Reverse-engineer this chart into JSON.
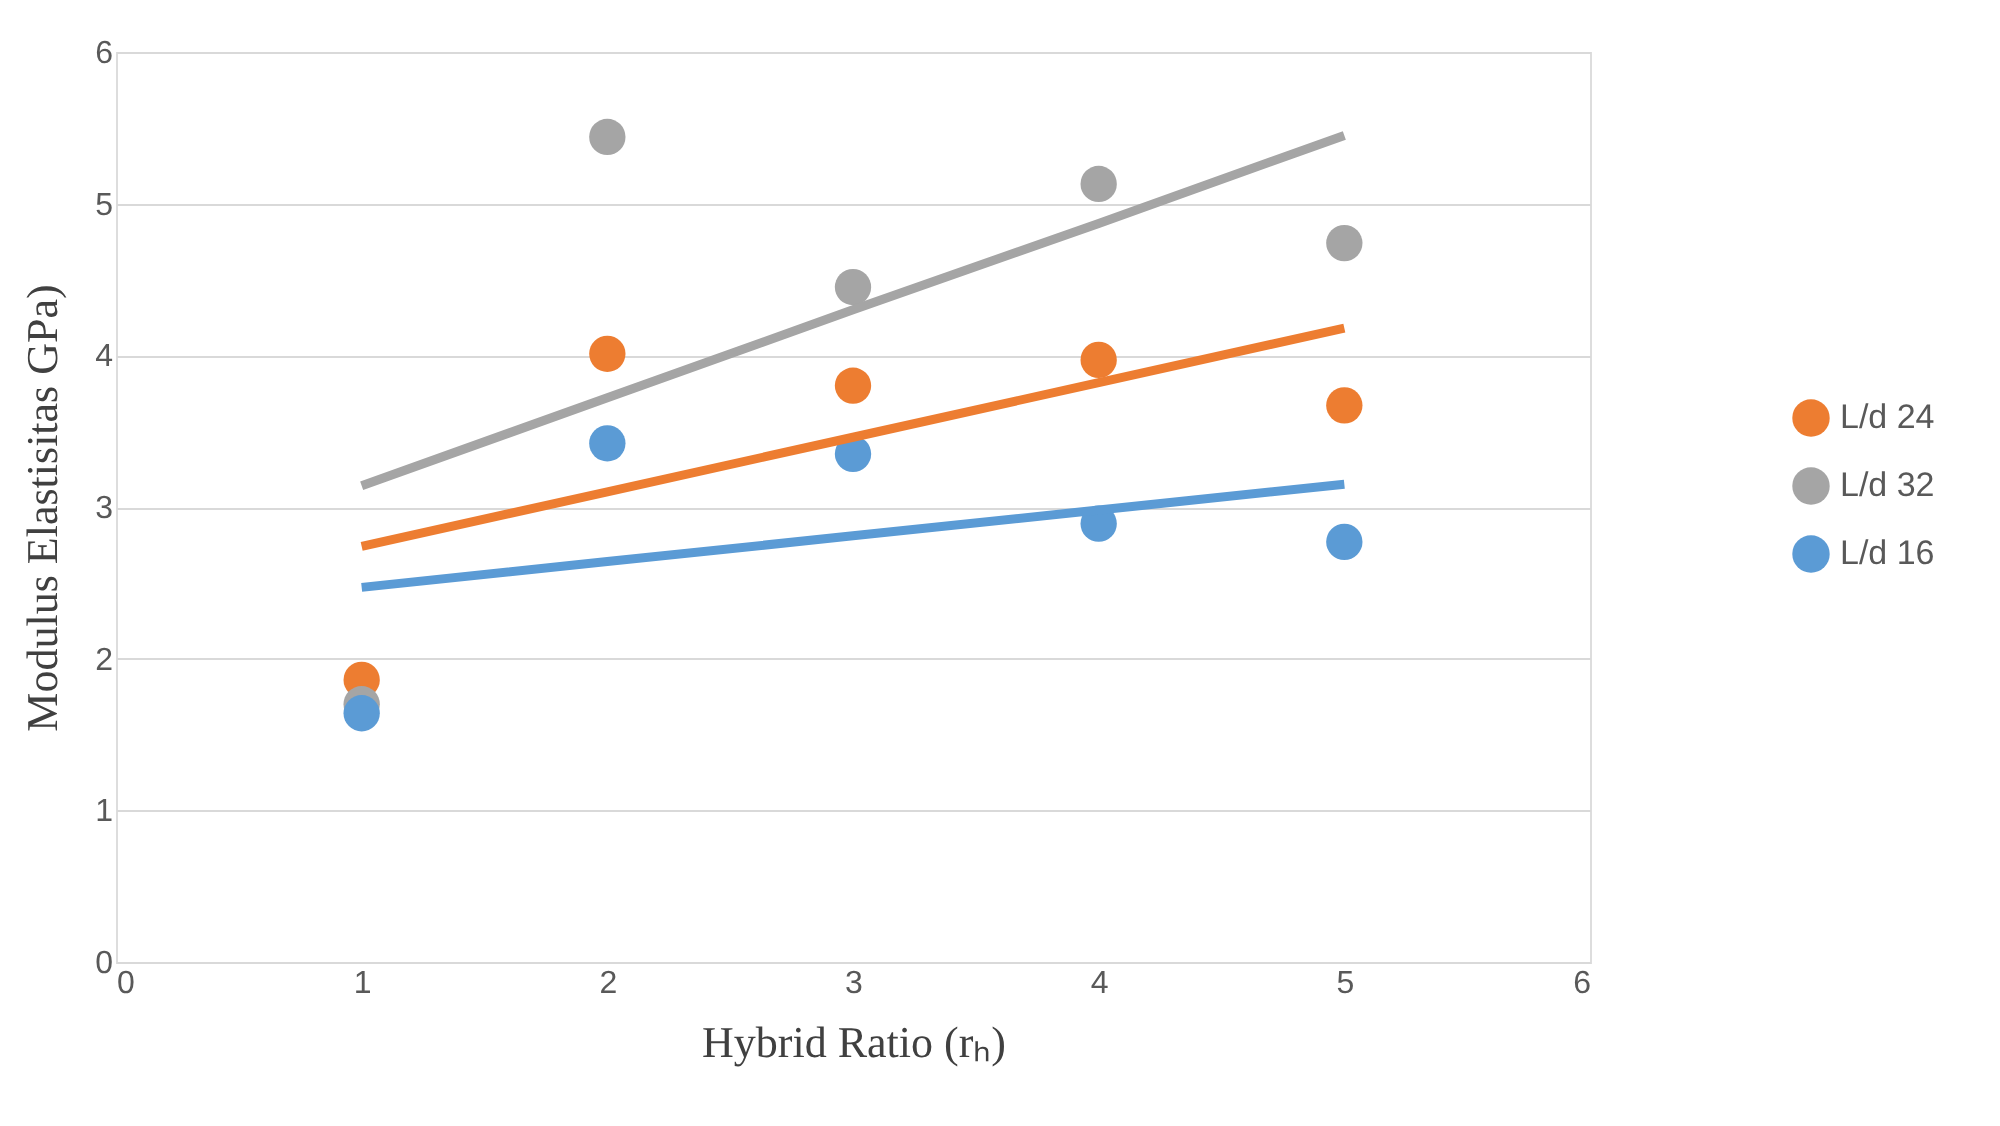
{
  "chart_data": {
    "type": "scatter",
    "xlabel": "Hybrid Ratio (rₕ)",
    "ylabel": "Modulus Elastisitas GPa)",
    "x": [
      1,
      2,
      3,
      4,
      5
    ],
    "series": [
      {
        "name": "L/d 24",
        "color": "#ed7d31",
        "values": [
          1.86,
          4.01,
          3.8,
          3.97,
          3.67
        ]
      },
      {
        "name": "L/d 32",
        "color": "#a5a5a5",
        "values": [
          1.7,
          5.44,
          4.45,
          5.13,
          4.74
        ]
      },
      {
        "name": "L/d 16",
        "color": "#5b9bd5",
        "values": [
          1.64,
          3.42,
          3.35,
          2.89,
          2.77
        ]
      },
      {
        "type": "line",
        "marker": "none",
        "color": "#ed7d31",
        "values": [
          2.74,
          3.1,
          3.46,
          3.82,
          4.18
        ]
      },
      {
        "type": "line",
        "marker": "none",
        "color": "#a5a5a5",
        "values": [
          3.14,
          3.72,
          4.3,
          4.87,
          5.45
        ]
      },
      {
        "type": "line",
        "marker": "none",
        "color": "#5b9bd5",
        "values": [
          2.47,
          2.64,
          2.81,
          2.98,
          3.15
        ]
      }
    ],
    "xlim": [
      0,
      6
    ],
    "xticks": [
      0,
      1,
      2,
      3,
      4,
      5,
      6
    ],
    "ylim": [
      0,
      6
    ],
    "yticks": [
      0,
      1,
      2,
      3,
      4,
      5,
      6
    ],
    "grid": "y",
    "legend": "right",
    "marker": "circle"
  }
}
